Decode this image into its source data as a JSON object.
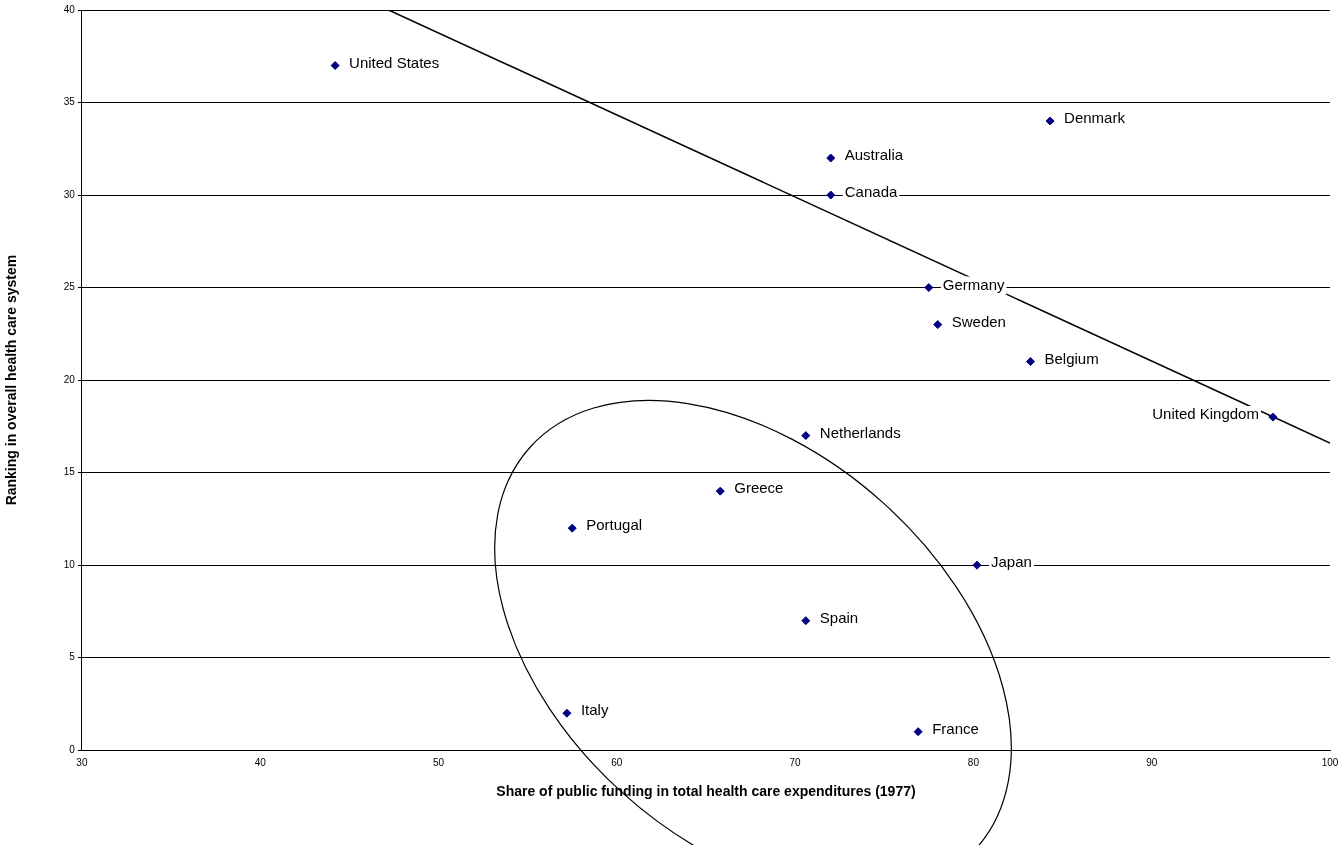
{
  "chart_data": {
    "type": "scatter",
    "xlabel": "Share of public funding in total health care expenditures (1977)",
    "ylabel": "Ranking in overall health care system",
    "xlim": [
      30,
      100
    ],
    "xticks": [
      30,
      40,
      50,
      60,
      70,
      80,
      90,
      100
    ],
    "ylim": [
      0,
      40
    ],
    "yticks": [
      0,
      5,
      10,
      15,
      20,
      25,
      30,
      35,
      40
    ],
    "grid": "y",
    "legend": false,
    "series": [
      {
        "type": "scatter",
        "color": "#000080",
        "marker": "diamond",
        "x": [
          44.2,
          84.3,
          72.0,
          72.0,
          77.5,
          78.0,
          83.2,
          96.8,
          70.6,
          65.8,
          57.5,
          80.2,
          70.6,
          57.2,
          76.9
        ],
        "values": [
          37,
          34,
          32,
          30,
          25,
          23,
          21,
          18,
          17,
          14,
          12,
          10,
          7,
          2,
          1
        ]
      },
      {
        "type": "line",
        "color": "#000000",
        "marker": "none",
        "x": [
          47.2,
          100
        ],
        "values": [
          40,
          16.6
        ]
      }
    ],
    "annotations": [
      {
        "text": "United States",
        "x": 44.2,
        "y": 37
      },
      {
        "text": "Denmark",
        "x": 84.3,
        "y": 34
      },
      {
        "text": "Australia",
        "x": 72.0,
        "y": 32
      },
      {
        "text": "Canada",
        "x": 72.0,
        "y": 30
      },
      {
        "text": "Germany",
        "x": 77.5,
        "y": 25
      },
      {
        "text": "Sweden",
        "x": 78.0,
        "y": 23
      },
      {
        "text": "Belgium",
        "x": 83.2,
        "y": 21
      },
      {
        "text": "United Kingdom",
        "x": 96.8,
        "y": 18
      },
      {
        "text": "Netherlands",
        "x": 70.6,
        "y": 17
      },
      {
        "text": "Greece",
        "x": 65.8,
        "y": 14
      },
      {
        "text": "Portugal",
        "x": 57.5,
        "y": 12
      },
      {
        "text": "Japan",
        "x": 80.2,
        "y": 10
      },
      {
        "text": "Spain",
        "x": 70.6,
        "y": 7
      },
      {
        "text": "Italy",
        "x": 57.2,
        "y": 2
      },
      {
        "text": "France",
        "x": 76.9,
        "y": 1
      }
    ]
  }
}
